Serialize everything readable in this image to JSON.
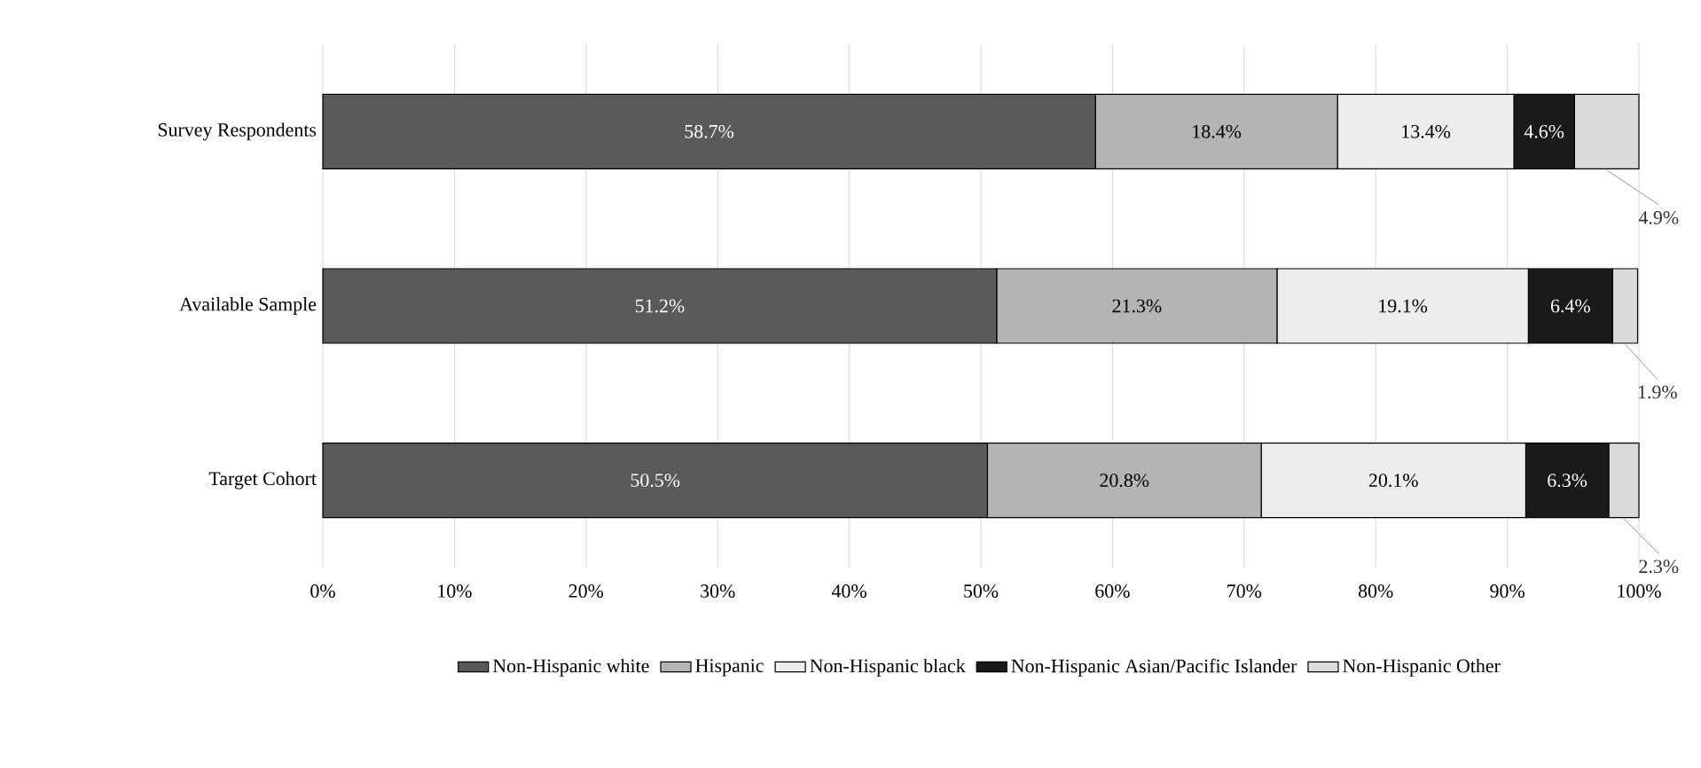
{
  "chart_data": {
    "type": "bar",
    "orientation": "horizontal",
    "stacked": true,
    "categories": [
      "Survey Respondents",
      "Available Sample",
      "Target Cohort"
    ],
    "series": [
      {
        "name": "Non-Hispanic white",
        "color": "#5a5a5a",
        "values": [
          58.7,
          51.2,
          50.5
        ],
        "value_labels": [
          "58.7%",
          "51.2%",
          "50.5%"
        ]
      },
      {
        "name": "Hispanic",
        "color": "#b4b4b4",
        "values": [
          18.4,
          21.3,
          20.8
        ],
        "value_labels": [
          "18.4%",
          "21.3%",
          "20.8%"
        ]
      },
      {
        "name": "Non-Hispanic black",
        "color": "#ededed",
        "values": [
          13.4,
          19.1,
          20.1
        ],
        "value_labels": [
          "13.4%",
          "19.1%",
          "20.1%"
        ]
      },
      {
        "name": "Non-Hispanic Asian/Pacific Islander",
        "color": "#1a1a1a",
        "values": [
          4.6,
          6.4,
          6.3
        ],
        "value_labels": [
          "4.6%",
          "6.4%",
          "6.3%"
        ]
      },
      {
        "name": "Non-Hispanic Other",
        "color": "#dadada",
        "values": [
          4.9,
          1.9,
          2.3
        ],
        "value_labels": [
          "4.9%",
          "1.9%",
          "2.3%"
        ]
      }
    ],
    "xlim": [
      0,
      100
    ],
    "xticks": [
      {
        "value": 0,
        "label": "0%"
      },
      {
        "value": 10,
        "label": "10%"
      },
      {
        "value": 20,
        "label": "20%"
      },
      {
        "value": 30,
        "label": "30%"
      },
      {
        "value": 40,
        "label": "40%"
      },
      {
        "value": 50,
        "label": "50%"
      },
      {
        "value": 60,
        "label": "60%"
      },
      {
        "value": 70,
        "label": "70%"
      },
      {
        "value": 80,
        "label": "80%"
      },
      {
        "value": 90,
        "label": "90%"
      },
      {
        "value": 100,
        "label": "100%"
      }
    ],
    "grid": "x",
    "legend": "bottom"
  }
}
